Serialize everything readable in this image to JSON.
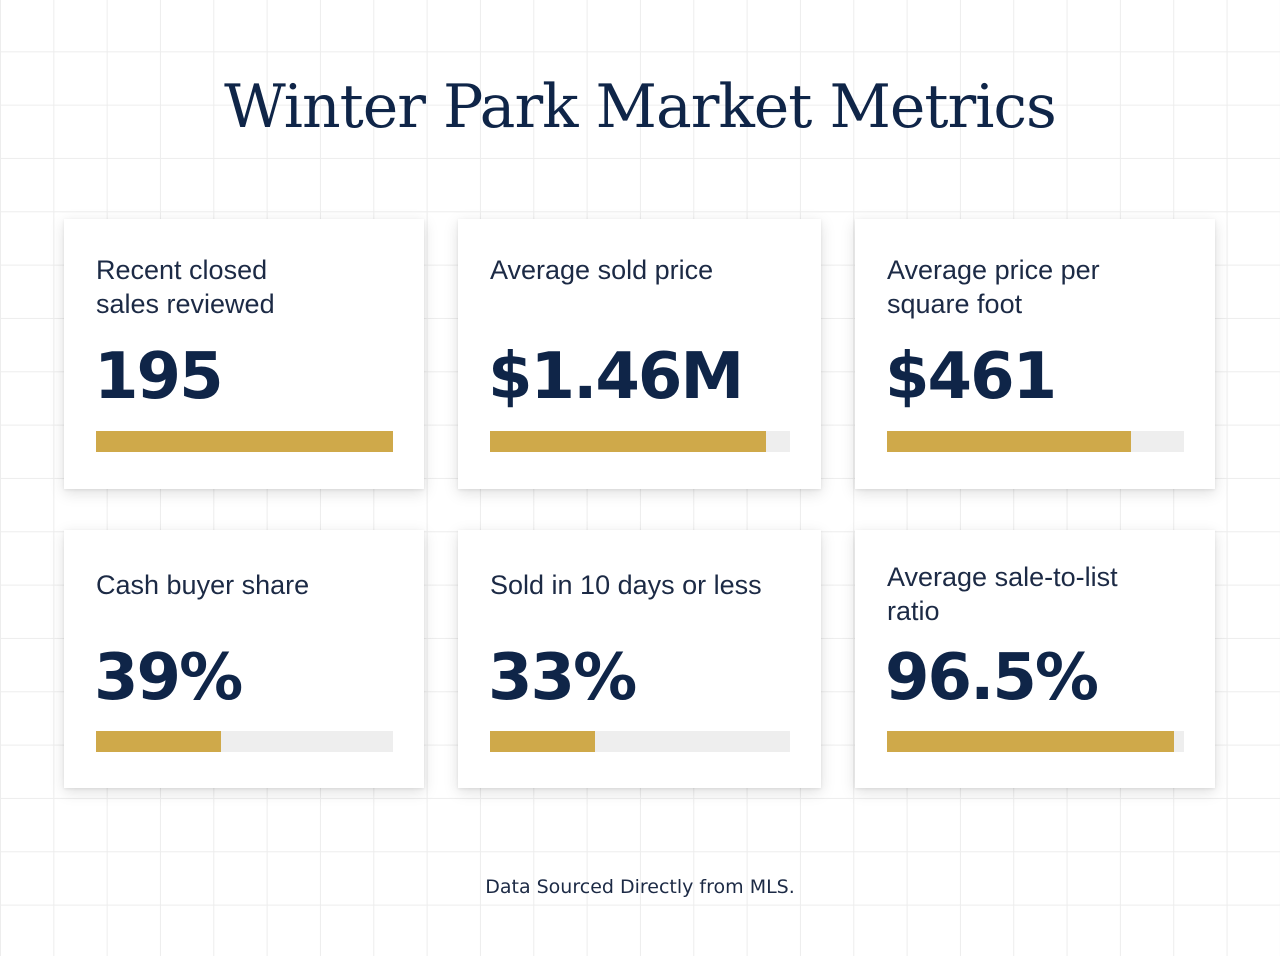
{
  "title": "Winter Park Market Metrics",
  "footer": "Data Sourced Directly from MLS.",
  "colors": {
    "navy": "#0f2548",
    "gold": "#cfa94a",
    "track": "#eeeeee"
  },
  "metrics": [
    {
      "label": "Recent closed sales reviewed",
      "value": "195",
      "progress": 1.0
    },
    {
      "label": "Average sold price",
      "value": "$1.46M",
      "progress": 0.92
    },
    {
      "label": "Average price per square foot",
      "value": "$461",
      "progress": 0.82
    },
    {
      "label": "Cash buyer share",
      "value": "39%",
      "progress": 0.42
    },
    {
      "label": "Sold in 10 days or less",
      "value": "33%",
      "progress": 0.35
    },
    {
      "label": "Average sale-to-list ratio",
      "value": "96.5%",
      "progress": 0.965
    }
  ]
}
